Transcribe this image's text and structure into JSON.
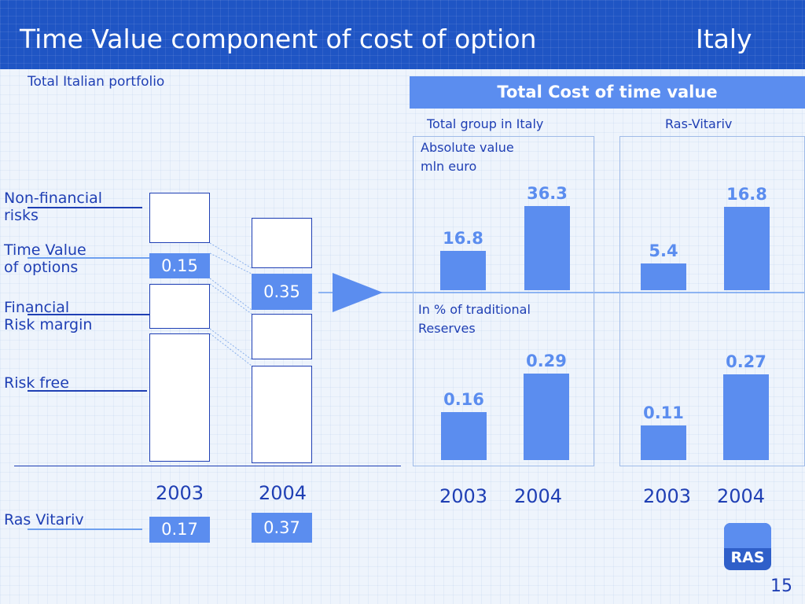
{
  "header": {
    "title": "Time Value component of cost of option",
    "country": "Italy"
  },
  "left": {
    "subtitle": "Total Italian portfolio",
    "labels": {
      "non_financial": [
        "Non-financial",
        "risks"
      ],
      "time_value": [
        "Time Value",
        "of options"
      ],
      "financial": [
        "Financial",
        "Risk margin"
      ],
      "risk_free": "Risk free"
    },
    "values_2003": "0.15",
    "values_2004": "0.35",
    "years": [
      "2003",
      "2004"
    ],
    "ras_vitariv_label": "Ras Vitariv",
    "ras_2003": "0.17",
    "ras_2004": "0.37"
  },
  "right": {
    "header": "Total Cost of time value",
    "col_group": "Total group in Italy",
    "col_ras": "Ras-Vitariv",
    "abs_label": [
      "Absolute value",
      "mln euro"
    ],
    "pct_label": [
      "In % of traditional",
      "Reserves"
    ],
    "years": [
      "2003",
      "2004"
    ]
  },
  "chart_data": [
    {
      "type": "bar",
      "title": "Total group in Italy",
      "ylabel": "Absolute value mln euro",
      "categories": [
        "2003",
        "2004"
      ],
      "values": [
        16.8,
        36.3
      ],
      "labels": [
        "16.8",
        "36.3"
      ]
    },
    {
      "type": "bar",
      "title": "Ras-Vitariv",
      "ylabel": "Absolute value mln euro",
      "categories": [
        "2003",
        "2004"
      ],
      "values": [
        5.4,
        16.8
      ],
      "labels": [
        "5.4",
        "16.8"
      ]
    },
    {
      "type": "bar",
      "title": "Total group in Italy",
      "ylabel": "In % of traditional Reserves",
      "categories": [
        "2003",
        "2004"
      ],
      "values": [
        0.16,
        0.29
      ],
      "labels": [
        "0.16",
        "0.29"
      ]
    },
    {
      "type": "bar",
      "title": "Ras-Vitariv",
      "ylabel": "In % of traditional Reserves",
      "categories": [
        "2003",
        "2004"
      ],
      "values": [
        0.11,
        0.27
      ],
      "labels": [
        "0.11",
        "0.27"
      ]
    }
  ],
  "footer": {
    "logo_text": "RAS",
    "page_number": "15"
  },
  "colors": {
    "header_bg": "#1f55c4",
    "navy": "#1f3fb4",
    "accent": "#5b8def"
  }
}
